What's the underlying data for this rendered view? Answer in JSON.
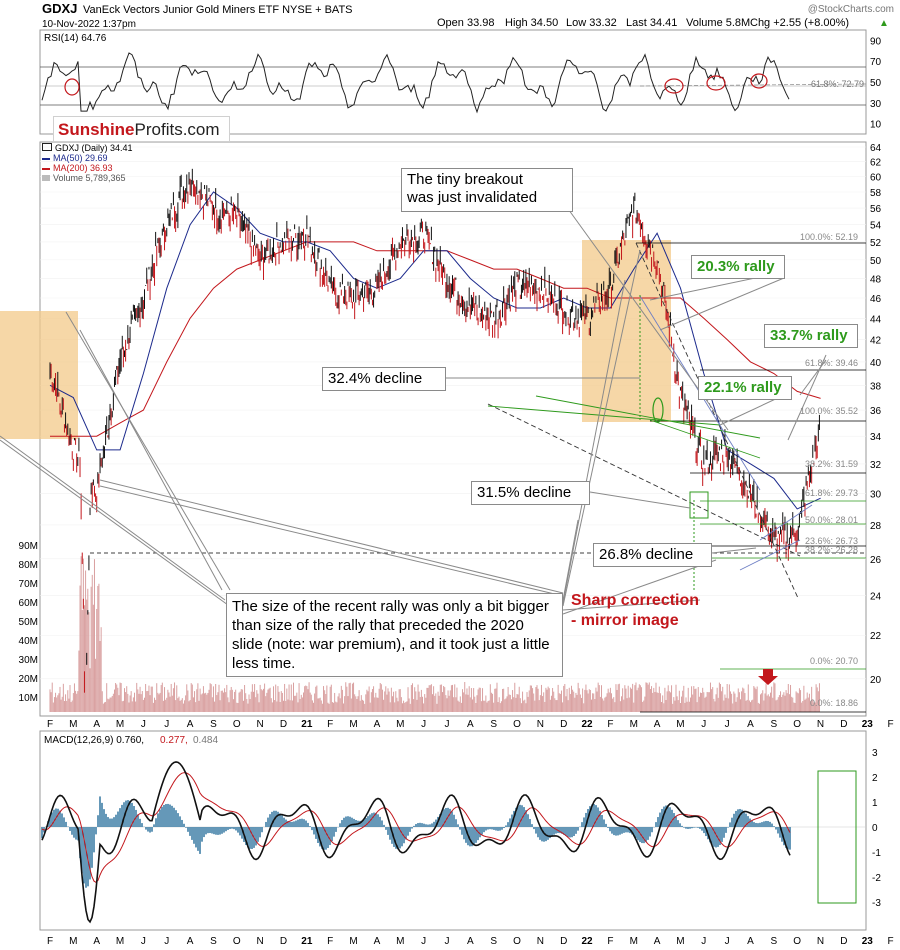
{
  "header": {
    "symbol": "GDXJ",
    "description": "VanEck Vectors Junior Gold Miners ETF  NYSE + BATS",
    "date": "10-Nov-2022 1:37pm",
    "watermark": "@StockCharts.com",
    "ohlc": {
      "open": "Open 33.98",
      "high": "High 34.50",
      "low": "Low 33.32",
      "last": "Last 34.41",
      "volume": "Volume 5.8M",
      "change": "Chg +2.55 (+8.00%)"
    },
    "up_arrow": "▲"
  },
  "logo": {
    "part1": "Sunshine",
    "part2": "Profits.com"
  },
  "colors": {
    "price_up": "#111111",
    "price_down": "#c3171c",
    "ma50": "#1c2a8c",
    "ma200": "#c3171c",
    "volume": "#d9a0a0",
    "macd_hist": "#3f7ea6",
    "box_fill": "#f3c98a",
    "green": "#2e9a1c"
  },
  "rsi": {
    "label": "RSI(14) 64.76",
    "ticks": [
      "90",
      "70",
      "50",
      "30",
      "10"
    ],
    "level_label": "61.8%: 72.79"
  },
  "price": {
    "legend": [
      "GDXJ (Daily) 34.41",
      "MA(50) 29.69",
      "MA(200) 36.93",
      "Volume 5,789,365"
    ],
    "y_ticks": [
      "64",
      "62",
      "60",
      "58",
      "56",
      "54",
      "52",
      "50",
      "48",
      "46",
      "44",
      "42",
      "40",
      "38",
      "36",
      "34",
      "32",
      "30",
      "28",
      "26",
      "24",
      "22",
      "20"
    ],
    "vol_ticks": [
      "90M",
      "80M",
      "70M",
      "60M",
      "50M",
      "40M",
      "30M",
      "20M",
      "10M"
    ],
    "fib_levels": [
      "100.0%: 52.19",
      "61.8%: 39.46",
      "100.0%: 35.52",
      "38.2%: 31.59",
      "61.8%: 29.73",
      "50.0%: 28.01",
      "23.6%: 26.73",
      "38.2%: 26.28",
      "0.0%: 20.70",
      "0.0%: 18.86"
    ]
  },
  "annotations": {
    "breakout": "The tiny breakout\nwas just invalidated",
    "rally_203": "20.3% rally",
    "rally_337": "33.7% rally",
    "rally_221": "22.1% rally",
    "decline_324": "32.4% decline",
    "decline_315": "31.5% decline",
    "decline_268": "26.8% decline",
    "sharp": "Sharp correction\n- mirror image",
    "size_note": "The size of the recent rally was only a bit bigger than size of the rally that preceded the 2020 slide (note: war premium), and it took just a little less time."
  },
  "macd": {
    "label_main": "MACD(12,26,9) 0.760,",
    "label_signal": "0.277,",
    "label_hist": "0.484",
    "ticks": [
      "3",
      "2",
      "1",
      "0",
      "-1",
      "-2",
      "-3"
    ]
  },
  "x_axis": [
    "F",
    "M",
    "A",
    "M",
    "J",
    "J",
    "A",
    "S",
    "O",
    "N",
    "D",
    "21",
    "F",
    "M",
    "A",
    "M",
    "J",
    "J",
    "A",
    "S",
    "O",
    "N",
    "D",
    "22",
    "F",
    "M",
    "A",
    "M",
    "J",
    "J",
    "A",
    "S",
    "O",
    "N",
    "D",
    "23",
    "F"
  ],
  "chart_data": {
    "type": "line",
    "title": "GDXJ VanEck Vectors Junior Gold Miners ETF",
    "x": [
      "Feb 2020",
      "Mar 2020",
      "Apr 2020",
      "May 2020",
      "Jun 2020",
      "Jul 2020",
      "Aug 2020",
      "Sep 2020",
      "Oct 2020",
      "Nov 2020",
      "Dec 2020",
      "Jan 2021",
      "Feb 2021",
      "Mar 2021",
      "Apr 2021",
      "May 2021",
      "Jun 2021",
      "Jul 2021",
      "Aug 2021",
      "Sep 2021",
      "Oct 2021",
      "Nov 2021",
      "Dec 2021",
      "Jan 2022",
      "Feb 2022",
      "Mar 2022",
      "Apr 2022",
      "May 2022",
      "Jun 2022",
      "Jul 2022",
      "Aug 2022",
      "Sep 2022",
      "Oct 2022",
      "Nov 2022"
    ],
    "series": [
      {
        "name": "GDXJ (Daily) 34.41",
        "values": [
          39.5,
          33,
          30,
          40,
          46,
          54,
          60,
          56,
          55,
          50,
          52,
          53,
          47,
          46,
          47,
          52,
          53,
          48,
          45,
          44,
          47,
          47,
          45,
          44,
          47,
          56,
          50,
          37,
          32,
          33,
          30,
          27,
          27.5,
          34.41
        ]
      },
      {
        "name": "MA(50) 29.69",
        "values": [
          38,
          37,
          33,
          33,
          39,
          47,
          54,
          58,
          56,
          53,
          52,
          52,
          51,
          48,
          47,
          48,
          51,
          51,
          48,
          46,
          45,
          45,
          46,
          45,
          45,
          49,
          53,
          47,
          39,
          33,
          32,
          31,
          29,
          29.69
        ]
      },
      {
        "name": "MA(200) 36.93",
        "values": [
          34,
          34,
          34,
          35,
          36,
          40,
          44,
          47,
          49,
          50,
          51,
          52,
          52,
          52,
          51,
          51,
          51,
          51,
          50,
          49,
          49,
          48,
          47,
          47,
          46,
          46,
          46,
          46,
          44,
          42,
          40,
          39,
          37.5,
          36.93
        ]
      }
    ],
    "ylim": [
      18,
      64
    ],
    "y_scale": "log",
    "grid": true
  }
}
